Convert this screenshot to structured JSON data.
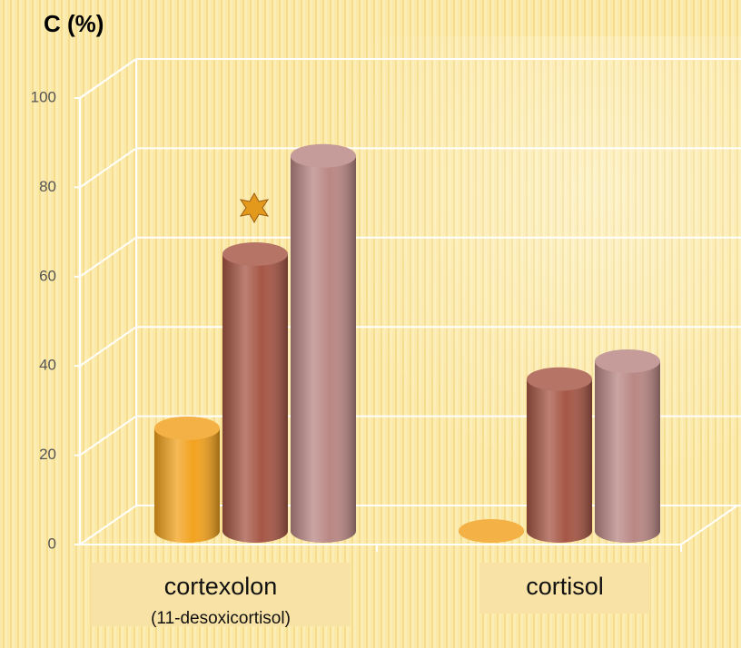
{
  "chart_data": {
    "type": "bar3d",
    "y_axis_label": "C (%)",
    "categories": [
      "cortexolon",
      "cortisol"
    ],
    "category_sublabels": [
      "(11-desoxicortisol)",
      null
    ],
    "series": [
      {
        "color": "#f2a21e",
        "values": [
          23,
          0
        ]
      },
      {
        "color": "#a65645",
        "values": [
          62,
          34
        ]
      },
      {
        "color": "#b98784",
        "values": [
          84,
          38
        ]
      }
    ],
    "ylim": [
      0,
      100
    ],
    "yticks": [
      0,
      20,
      40,
      60,
      80,
      100
    ],
    "grid": true
  }
}
